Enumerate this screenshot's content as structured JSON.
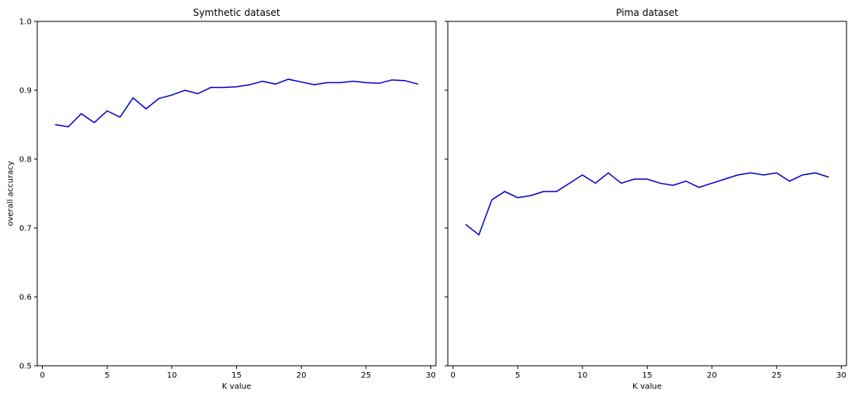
{
  "chart_data": [
    {
      "type": "line",
      "title": "Symthetic dataset",
      "xlabel": "K value",
      "ylabel": "overall accuracy",
      "xlim": [
        -0.4,
        30.4
      ],
      "ylim": [
        0.5,
        1.0
      ],
      "xticks": [
        "0",
        "5",
        "10",
        "15",
        "20",
        "25",
        "30"
      ],
      "yticks": [
        "0.5",
        "0.6",
        "0.7",
        "0.8",
        "0.9",
        "1.0"
      ],
      "show_ytick_labels": true,
      "grid": false,
      "color": "#0000cc",
      "x": [
        1,
        2,
        3,
        4,
        5,
        6,
        7,
        8,
        9,
        10,
        11,
        12,
        13,
        14,
        15,
        16,
        17,
        18,
        19,
        20,
        21,
        22,
        23,
        24,
        25,
        26,
        27,
        28,
        29
      ],
      "y": [
        0.85,
        0.847,
        0.866,
        0.853,
        0.87,
        0.861,
        0.889,
        0.873,
        0.888,
        0.893,
        0.9,
        0.895,
        0.904,
        0.904,
        0.905,
        0.908,
        0.913,
        0.909,
        0.916,
        0.912,
        0.908,
        0.911,
        0.911,
        0.913,
        0.911,
        0.91,
        0.915,
        0.914,
        0.909
      ]
    },
    {
      "type": "line",
      "title": "Pima dataset",
      "xlabel": "K value",
      "ylabel": "",
      "xlim": [
        -0.4,
        30.4
      ],
      "ylim": [
        0.5,
        1.0
      ],
      "xticks": [
        "0",
        "5",
        "10",
        "15",
        "20",
        "25",
        "30"
      ],
      "yticks": [
        "0.5",
        "0.6",
        "0.7",
        "0.8",
        "0.9",
        "1.0"
      ],
      "show_ytick_labels": false,
      "grid": false,
      "color": "#0000cc",
      "x": [
        1,
        2,
        3,
        4,
        5,
        6,
        7,
        8,
        9,
        10,
        11,
        12,
        13,
        14,
        15,
        16,
        17,
        18,
        19,
        20,
        21,
        22,
        23,
        24,
        25,
        26,
        27,
        28,
        29
      ],
      "y": [
        0.705,
        0.69,
        0.741,
        0.753,
        0.744,
        0.747,
        0.753,
        0.753,
        0.765,
        0.777,
        0.765,
        0.78,
        0.765,
        0.771,
        0.771,
        0.765,
        0.762,
        0.768,
        0.759,
        0.765,
        0.771,
        0.777,
        0.78,
        0.777,
        0.78,
        0.768,
        0.777,
        0.78,
        0.774
      ]
    }
  ]
}
